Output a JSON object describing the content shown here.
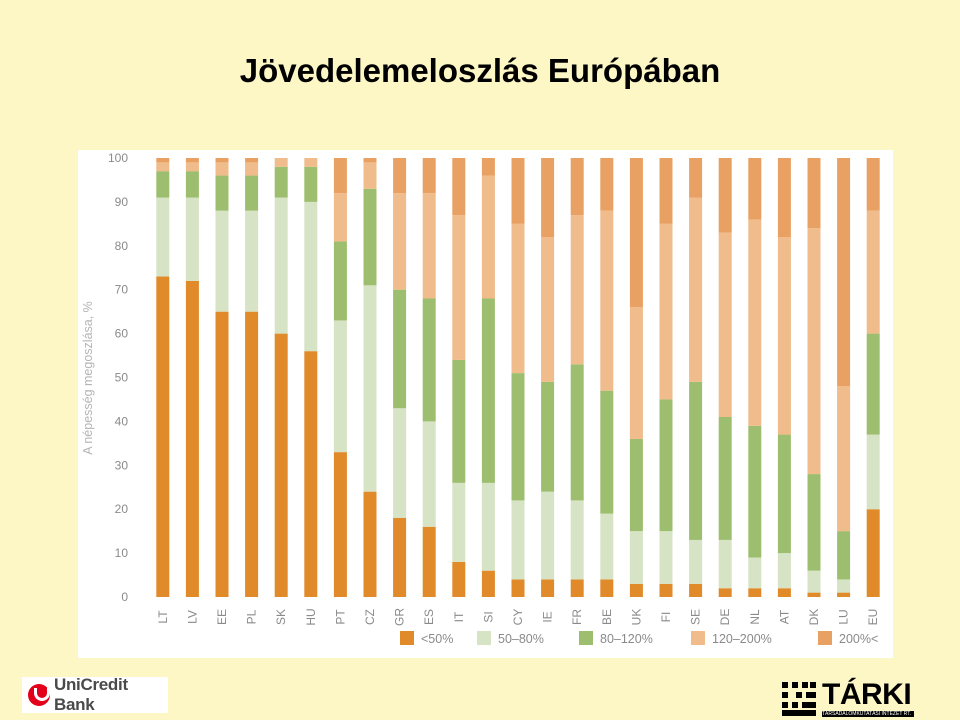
{
  "slide": {
    "title": "Jövedelemeloszlás Európában"
  },
  "logos": {
    "unicredit": "UniCredit Bank",
    "tarki": "TÁRKI",
    "tarki_sub": "TÁRSADALOMKUTATÁSI INTÉZET RT."
  },
  "chart_data": {
    "type": "bar",
    "stacked": true,
    "title": "",
    "xlabel": "",
    "ylabel": "A népesség megoszlása, %",
    "ylim": [
      0,
      100
    ],
    "yticks": [
      0,
      10,
      20,
      30,
      40,
      50,
      60,
      70,
      80,
      90,
      100
    ],
    "grid": false,
    "legend_position": "bottom",
    "categories": [
      "LT",
      "LV",
      "EE",
      "PL",
      "SK",
      "HU",
      "PT",
      "CZ",
      "GR",
      "ES",
      "IT",
      "SI",
      "CY",
      "IE",
      "FR",
      "BE",
      "UK",
      "FI",
      "SE",
      "DE",
      "NL",
      "AT",
      "DK",
      "LU",
      "EU"
    ],
    "series": [
      {
        "name": "<50%",
        "color": "#e08a2a",
        "values": [
          73,
          72,
          65,
          65,
          60,
          56,
          33,
          24,
          18,
          16,
          8,
          6,
          4,
          4,
          4,
          4,
          3,
          3,
          3,
          2,
          2,
          2,
          1,
          1,
          20
        ]
      },
      {
        "name": "50–80%",
        "color": "#d6e3c4",
        "values": [
          18,
          19,
          23,
          23,
          31,
          34,
          30,
          47,
          25,
          24,
          18,
          20,
          18,
          20,
          18,
          15,
          12,
          12,
          10,
          11,
          7,
          8,
          5,
          3,
          17
        ]
      },
      {
        "name": "80–120%",
        "color": "#9cbe6e",
        "values": [
          6,
          6,
          8,
          8,
          7,
          8,
          18,
          22,
          27,
          28,
          28,
          42,
          29,
          25,
          31,
          28,
          21,
          30,
          36,
          28,
          30,
          27,
          22,
          11,
          23
        ]
      },
      {
        "name": "120–200%",
        "color": "#f0bc8c",
        "values": [
          2,
          2,
          3,
          3,
          2,
          2,
          11,
          6,
          22,
          24,
          33,
          28,
          34,
          33,
          34,
          41,
          30,
          40,
          42,
          42,
          47,
          45,
          56,
          33,
          28
        ]
      },
      {
        "name": "200%<",
        "color": "#e9a163",
        "values": [
          1,
          1,
          1,
          1,
          0,
          0,
          8,
          1,
          8,
          8,
          13,
          4,
          15,
          18,
          13,
          12,
          34,
          15,
          9,
          17,
          14,
          18,
          16,
          52,
          12
        ]
      }
    ]
  }
}
